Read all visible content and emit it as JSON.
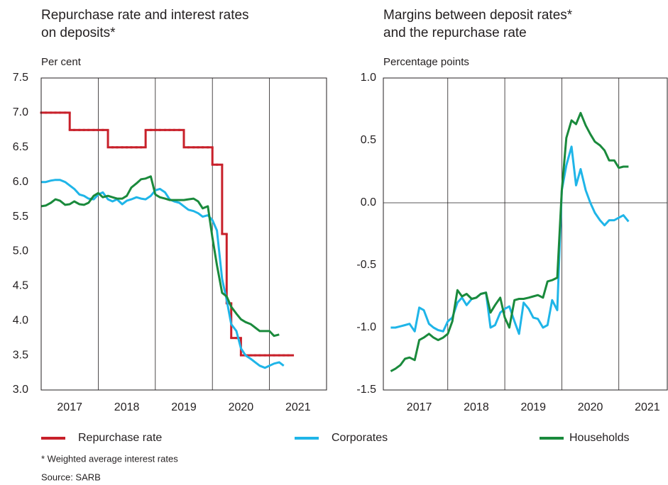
{
  "chart_data": [
    {
      "type": "line",
      "title": [
        "Repurchase rate and interest rates",
        "on deposits*"
      ],
      "ylabel": "Per cent",
      "categories": [
        "2017",
        "2018",
        "2019",
        "2020",
        "2021"
      ],
      "x": [
        2017,
        2017.08,
        2017.17,
        2017.25,
        2017.33,
        2017.42,
        2017.5,
        2017.58,
        2017.67,
        2017.75,
        2017.83,
        2017.92,
        2018,
        2018.08,
        2018.17,
        2018.25,
        2018.33,
        2018.42,
        2018.5,
        2018.58,
        2018.67,
        2018.75,
        2018.83,
        2018.92,
        2019,
        2019.08,
        2019.17,
        2019.25,
        2019.33,
        2019.42,
        2019.5,
        2019.58,
        2019.67,
        2019.75,
        2019.83,
        2019.92,
        2020,
        2020.08,
        2020.17,
        2020.25,
        2020.33,
        2020.42,
        2020.5,
        2020.58,
        2020.67,
        2020.75,
        2020.83,
        2020.92,
        2021,
        2021.08,
        2021.17,
        2021.25,
        2021.33
      ],
      "xlim": [
        2017,
        2022
      ],
      "xticks": [
        2018,
        2019,
        2020,
        2021
      ],
      "ylim": [
        3,
        7.5
      ],
      "yticks": [
        {
          "value": 3,
          "label": "3.0"
        },
        {
          "value": 3.5,
          "label": "3.5"
        },
        {
          "value": 4,
          "label": "4.0"
        },
        {
          "value": 4.5,
          "label": "4.5"
        },
        {
          "value": 5,
          "label": "5.0"
        },
        {
          "value": 5.5,
          "label": "5.5"
        },
        {
          "value": 6,
          "label": "6.0"
        },
        {
          "value": 6.5,
          "label": "6.5"
        },
        {
          "value": 7,
          "label": "7.0"
        },
        {
          "value": 7.5,
          "label": "7.5"
        }
      ],
      "series": [
        {
          "name": "Repurchase rate",
          "color": "#c8202a",
          "drawstyle": "steps-post",
          "values": [
            7,
            7,
            7,
            7,
            7,
            7,
            6.75,
            6.75,
            6.75,
            6.75,
            6.75,
            6.75,
            6.75,
            6.75,
            6.5,
            6.5,
            6.5,
            6.5,
            6.5,
            6.5,
            6.5,
            6.5,
            6.75,
            6.75,
            6.75,
            6.75,
            6.75,
            6.75,
            6.75,
            6.75,
            6.5,
            6.5,
            6.5,
            6.5,
            6.5,
            6.5,
            6.25,
            6.25,
            5.25,
            4.25,
            3.75,
            3.75,
            3.5,
            3.5,
            3.5,
            3.5,
            3.5,
            3.5,
            3.5,
            3.5,
            3.5,
            3.5,
            3.5
          ]
        },
        {
          "name": "Corporates",
          "color": "#1fb5e8",
          "values": [
            6.0,
            6.0,
            6.02,
            6.03,
            6.03,
            6.0,
            5.95,
            5.9,
            5.82,
            5.8,
            5.76,
            5.75,
            5.82,
            5.85,
            5.75,
            5.72,
            5.75,
            5.68,
            5.73,
            5.75,
            5.78,
            5.76,
            5.75,
            5.8,
            5.88,
            5.9,
            5.85,
            5.75,
            5.72,
            5.7,
            5.65,
            5.6,
            5.58,
            5.55,
            5.5,
            5.52,
            5.45,
            5.3,
            4.6,
            4.3,
            3.95,
            3.85,
            3.6,
            3.5,
            3.45,
            3.4,
            3.35,
            3.32,
            3.35,
            3.38,
            3.4,
            3.35,
            null
          ]
        },
        {
          "name": "Households",
          "color": "#1a8a3c",
          "values": [
            5.65,
            5.66,
            5.7,
            5.75,
            5.73,
            5.67,
            5.68,
            5.72,
            5.68,
            5.67,
            5.7,
            5.8,
            5.84,
            5.78,
            5.8,
            5.78,
            5.76,
            5.76,
            5.8,
            5.92,
            5.98,
            6.04,
            6.05,
            6.08,
            5.82,
            5.78,
            5.76,
            5.74,
            5.74,
            5.74,
            5.74,
            5.75,
            5.76,
            5.72,
            5.62,
            5.65,
            5.2,
            4.8,
            4.4,
            4.35,
            4.2,
            4.1,
            4.02,
            3.98,
            3.95,
            3.9,
            3.85,
            3.85,
            3.85,
            3.78,
            3.8,
            null,
            null
          ]
        }
      ]
    },
    {
      "type": "line",
      "title": [
        "Margins between deposit rates*",
        "and the repurchase rate"
      ],
      "ylabel": "Percentage points",
      "categories": [
        "2017",
        "2018",
        "2019",
        "2020",
        "2021"
      ],
      "x": [
        2017,
        2017.08,
        2017.17,
        2017.25,
        2017.33,
        2017.42,
        2017.5,
        2017.58,
        2017.67,
        2017.75,
        2017.83,
        2017.92,
        2018,
        2018.08,
        2018.17,
        2018.25,
        2018.33,
        2018.42,
        2018.5,
        2018.58,
        2018.67,
        2018.75,
        2018.83,
        2018.92,
        2019,
        2019.08,
        2019.17,
        2019.25,
        2019.33,
        2019.42,
        2019.5,
        2019.58,
        2019.67,
        2019.75,
        2019.83,
        2019.92,
        2020,
        2020.08,
        2020.17,
        2020.25,
        2020.33,
        2020.42,
        2020.5,
        2020.58,
        2020.67,
        2020.75,
        2020.83,
        2020.92,
        2021,
        2021.08,
        2021.17,
        2021.25,
        2021.33
      ],
      "xlim": [
        2016.87,
        2021.85
      ],
      "xticks": [
        2018,
        2019,
        2020,
        2021
      ],
      "ylim": [
        -1.5,
        1
      ],
      "yticks": [
        {
          "value": -1.5,
          "label": "-1.5"
        },
        {
          "value": -1,
          "label": "-1.0"
        },
        {
          "value": -0.5,
          "label": "-0.5"
        },
        {
          "value": 0,
          "label": "0.0"
        },
        {
          "value": 0.5,
          "label": "0.5"
        },
        {
          "value": 1,
          "label": "1.0"
        }
      ],
      "series": [
        {
          "name": "Corporates",
          "color": "#1fb5e8",
          "values": [
            -1.0,
            -1.0,
            -0.99,
            -0.98,
            -0.97,
            -1.03,
            -0.84,
            -0.86,
            -0.97,
            -1.0,
            -1.02,
            -1.03,
            -0.95,
            -0.92,
            -0.8,
            -0.76,
            -0.82,
            -0.77,
            -0.76,
            -0.73,
            -0.72,
            -1.0,
            -0.98,
            -0.88,
            -0.85,
            -0.83,
            -0.95,
            -1.05,
            -0.8,
            -0.85,
            -0.92,
            -0.93,
            -1.0,
            -0.98,
            -0.78,
            -0.86,
            0.1,
            0.3,
            0.45,
            0.14,
            0.27,
            0.1,
            0.0,
            -0.08,
            -0.14,
            -0.18,
            -0.14,
            -0.14,
            -0.12,
            -0.1,
            -0.15,
            null,
            null
          ]
        },
        {
          "name": "Households",
          "color": "#1a8a3c",
          "values": [
            -1.35,
            -1.33,
            -1.3,
            -1.25,
            -1.24,
            -1.26,
            -1.1,
            -1.08,
            -1.05,
            -1.08,
            -1.1,
            -1.08,
            -1.05,
            -0.95,
            -0.7,
            -0.75,
            -0.73,
            -0.77,
            -0.76,
            -0.73,
            -0.72,
            -0.88,
            -0.82,
            -0.76,
            -0.92,
            -1.0,
            -0.78,
            -0.77,
            -0.77,
            -0.76,
            -0.75,
            -0.74,
            -0.76,
            -0.63,
            -0.62,
            -0.6,
            0.1,
            0.52,
            0.66,
            0.63,
            0.72,
            0.62,
            0.55,
            0.49,
            0.46,
            0.42,
            0.34,
            0.34,
            0.28,
            0.29,
            0.29,
            null,
            null
          ]
        }
      ]
    }
  ],
  "notes": [
    "* Weighted average interest rates",
    "Source: SARB"
  ]
}
